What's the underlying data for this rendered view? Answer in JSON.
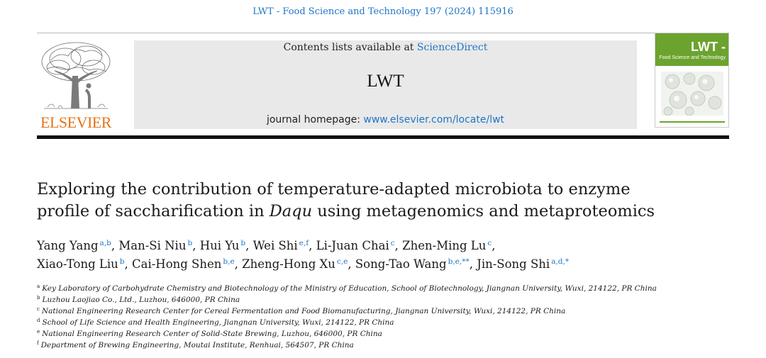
{
  "citation": "LWT - Food Science and Technology 197 (2024) 115916",
  "publisher": {
    "wordmark": "ELSEVIER",
    "color": "#e5731a"
  },
  "masthead": {
    "contents_prefix": "Contents lists available at",
    "contents_link": "ScienceDirect",
    "journal_name": "LWT",
    "homepage_prefix": "journal homepage:",
    "homepage_link": "www.elsevier.com/locate/lwt"
  },
  "cover": {
    "title": "LWT -",
    "subtitle": "Food Science and Technology",
    "band_color": "#6ca32e"
  },
  "article": {
    "title_line1": "Exploring the contribution of temperature-adapted microbiota to enzyme",
    "title_line2_prefix": "profile of saccharification in ",
    "title_line2_italic": "Daqu",
    "title_line2_suffix": " using metagenomics and metaproteomics"
  },
  "authors": [
    {
      "name": "Yang Yang",
      "aff": "a,b",
      "sep": ", "
    },
    {
      "name": "Man-Si Niu",
      "aff": "b",
      "sep": ", "
    },
    {
      "name": "Hui Yu",
      "aff": "b",
      "sep": ", "
    },
    {
      "name": "Wei Shi",
      "aff": "e,f",
      "sep": ", "
    },
    {
      "name": "Li-Juan Chai",
      "aff": "c",
      "sep": ", "
    },
    {
      "name": "Zhen-Ming Lu",
      "aff": "c",
      "sep": ","
    },
    {
      "name": "Xiao-Tong Liu",
      "aff": "b",
      "sep": ", "
    },
    {
      "name": "Cai-Hong Shen",
      "aff": "b,e",
      "sep": ", "
    },
    {
      "name": "Zheng-Hong Xu",
      "aff": "c,e",
      "sep": ", "
    },
    {
      "name": "Song-Tao Wang",
      "aff": "b,e,**",
      "sep": ", "
    },
    {
      "name": "Jin-Song Shi",
      "aff": "a,d,*",
      "sep": ""
    }
  ],
  "affiliations": [
    {
      "mark": "a",
      "text": "Key Laboratory of Carbohydrate Chemistry and Biotechnology of the Ministry of Education, School of Biotechnology, Jiangnan University, Wuxi, 214122, PR China"
    },
    {
      "mark": "b",
      "text": "Luzhou Laojiao Co., Ltd., Luzhou, 646000, PR China"
    },
    {
      "mark": "c",
      "text": "National Engineering Research Center for Cereal Fermentation and Food Biomanufacturing, Jiangnan University, Wuxi, 214122, PR China"
    },
    {
      "mark": "d",
      "text": "School of Life Science and Health Engineering, Jiangnan University, Wuxi, 214122, PR China"
    },
    {
      "mark": "e",
      "text": "National Engineering Research Center of Solid-State Brewing, Luzhou, 646000, PR China"
    },
    {
      "mark": "f",
      "text": "Department of Brewing Engineering, Moutai Institute, Renhuai, 564507, PR China"
    }
  ],
  "icons": {
    "publisher_logo": "elsevier-tree-icon",
    "cover_art": "cover-cells-icon"
  }
}
